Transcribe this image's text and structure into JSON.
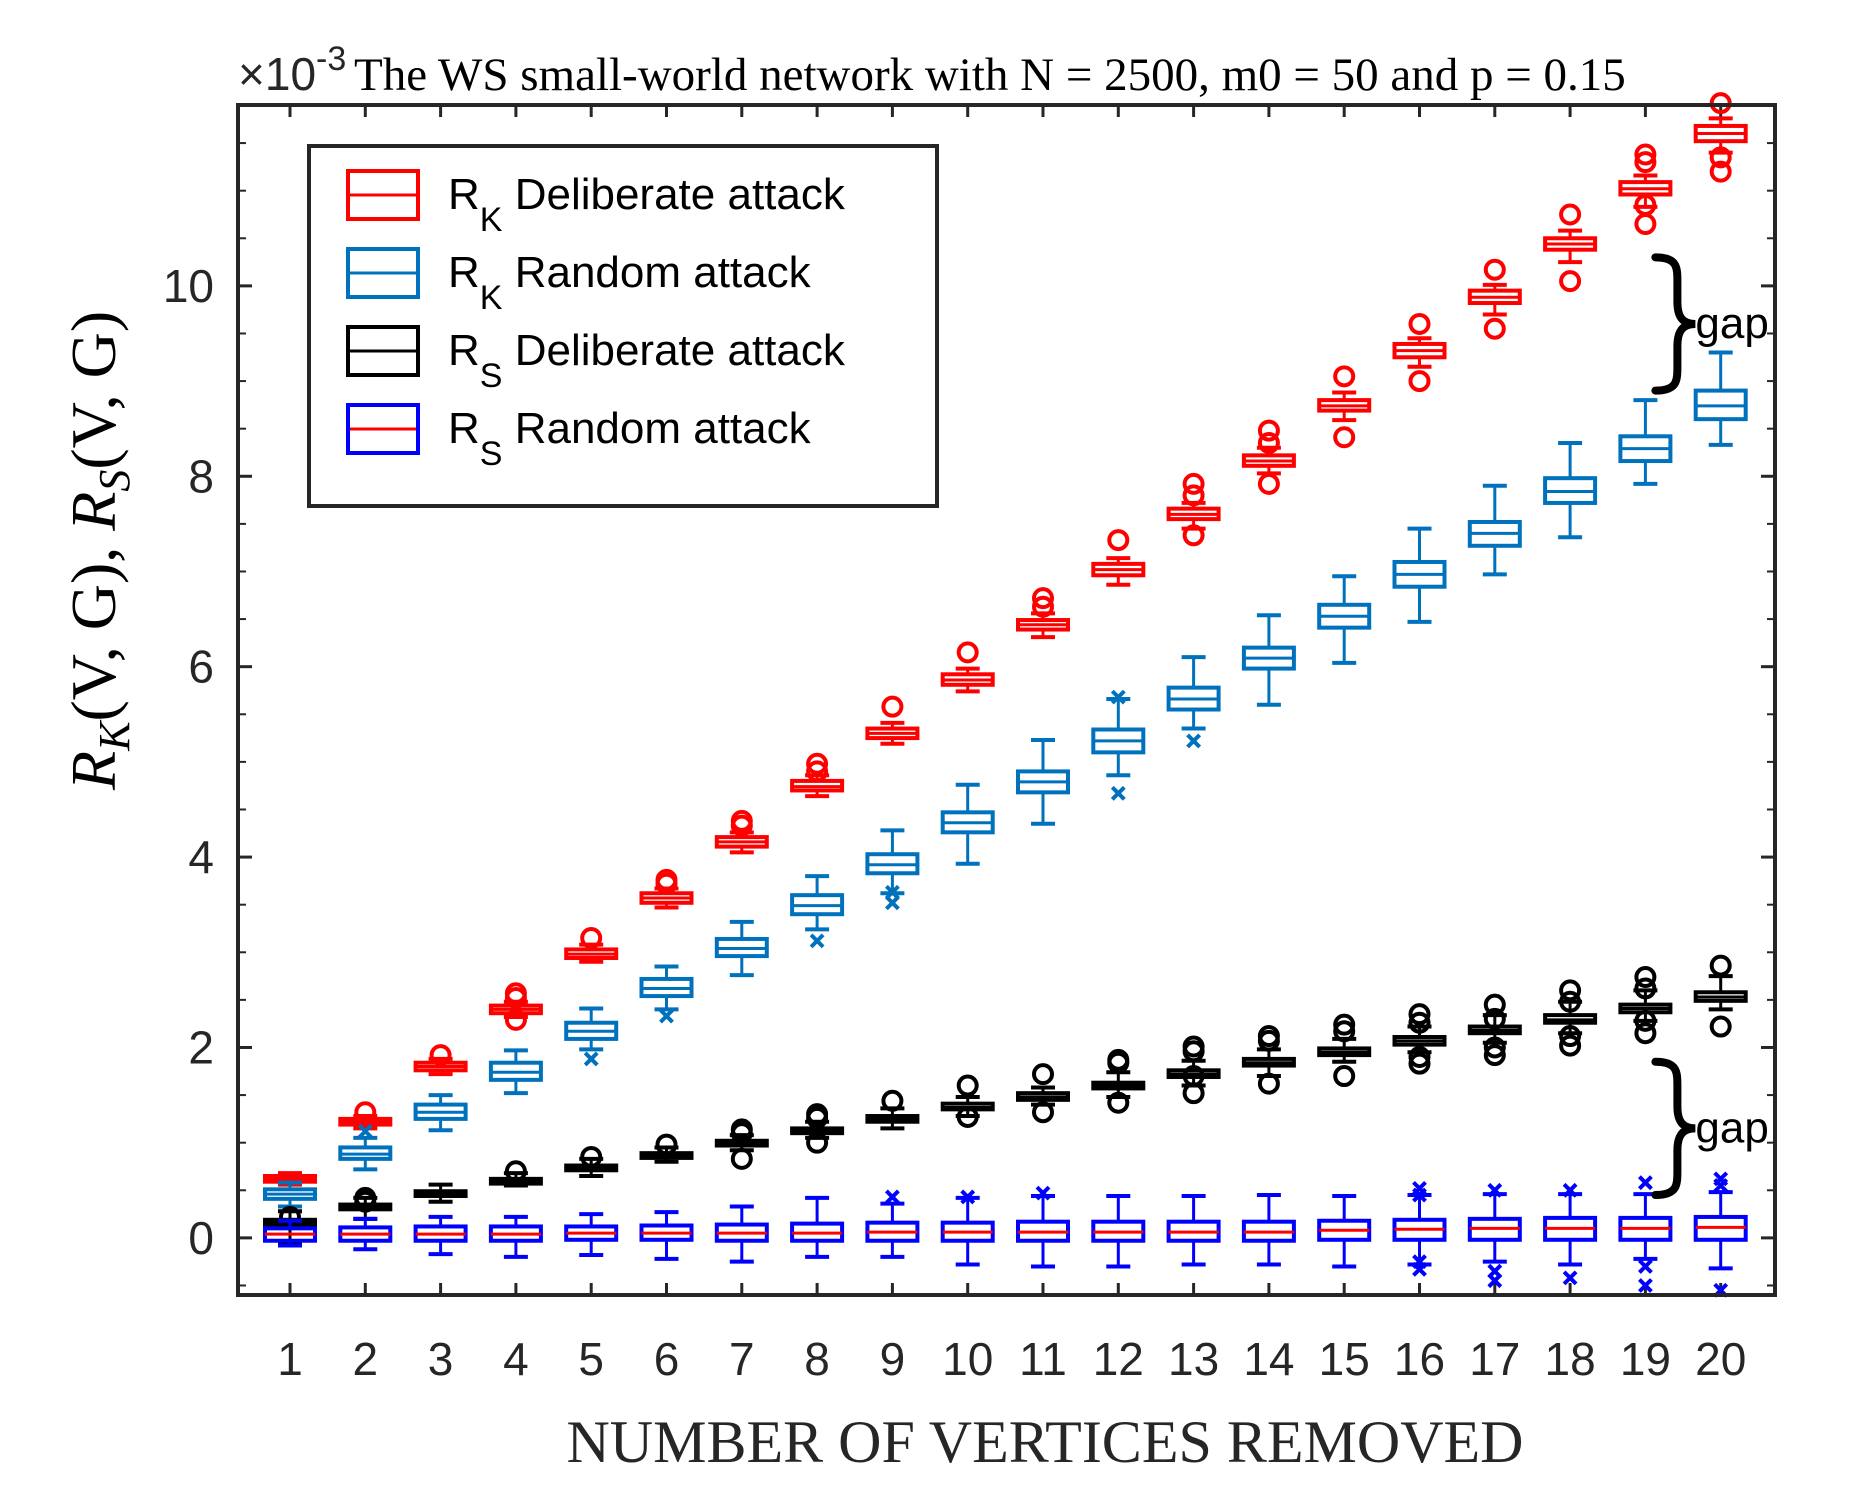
{
  "chart_data": {
    "type": "boxplot",
    "title": "The WS small-world network with N = 2500, m0 = 50 and p = 0.15",
    "xlabel": "NUMBER OF VERTICES REMOVED",
    "ylabel": "R_K(V, G), R_S(V, G)",
    "ylabel_parts": {
      "r1": "R",
      "k": "K",
      "mid": "(V, G), ",
      "r2": "R",
      "s": "S",
      "end": "(V, G)"
    },
    "y_exponent": {
      "prefix": "×10",
      "power": "-3"
    },
    "y_scale": 0.001,
    "ylim": [
      -0.6,
      11.9
    ],
    "y_ticks": [
      0,
      2,
      4,
      6,
      8,
      10
    ],
    "y_tick_labels": [
      "0",
      "2",
      "4",
      "6",
      "8",
      "10"
    ],
    "categories": [
      "1",
      "2",
      "3",
      "4",
      "5",
      "6",
      "7",
      "8",
      "9",
      "10",
      "11",
      "12",
      "13",
      "14",
      "15",
      "16",
      "17",
      "18",
      "19",
      "20"
    ],
    "annotations": [
      {
        "text": "gap",
        "y_top": 10.3,
        "y_bottom": 8.9,
        "x_after": 19
      },
      {
        "text": "gap",
        "y_top": 1.85,
        "y_bottom": 0.45,
        "x_after": 19
      }
    ],
    "legend": {
      "position": "top-left",
      "entries": [
        {
          "sym": "R",
          "sub": "K",
          "label": "Deliberate attack",
          "box_color": "#ff0000",
          "median_color": "#ff0000"
        },
        {
          "sym": "R",
          "sub": "K",
          "label": "Random attack",
          "box_color": "#0072bd",
          "median_color": "#0072bd"
        },
        {
          "sym": "R",
          "sub": "S",
          "label": "Deliberate attack",
          "box_color": "#000000",
          "median_color": "#000000"
        },
        {
          "sym": "R",
          "sub": "S",
          "label": "Random attack",
          "box_color": "#0000ff",
          "median_color": "#ff0000"
        }
      ]
    },
    "series": [
      {
        "name": "R_K Deliberate attack",
        "box_color": "#ff0000",
        "median_color": "#ff0000",
        "outlier_marker": "circle",
        "median": [
          0.62,
          1.22,
          1.8,
          2.4,
          2.98,
          3.57,
          4.16,
          4.74,
          5.3,
          5.86,
          6.44,
          7.02,
          7.6,
          8.16,
          8.74,
          9.32,
          9.88,
          10.44,
          11.02,
          11.6
        ],
        "q1": [
          0.59,
          1.19,
          1.76,
          2.36,
          2.94,
          3.52,
          4.11,
          4.7,
          5.25,
          5.81,
          6.39,
          6.96,
          7.55,
          8.11,
          8.69,
          9.25,
          9.82,
          10.38,
          10.96,
          11.52
        ],
        "q3": [
          0.65,
          1.25,
          1.84,
          2.44,
          3.03,
          3.62,
          4.21,
          4.8,
          5.35,
          5.92,
          6.49,
          7.08,
          7.66,
          8.22,
          8.8,
          9.39,
          9.95,
          10.5,
          11.09,
          11.68
        ],
        "wlo": [
          0.56,
          1.15,
          1.72,
          2.32,
          2.9,
          3.47,
          4.05,
          4.64,
          5.19,
          5.74,
          6.31,
          6.86,
          7.45,
          8.03,
          8.59,
          9.15,
          9.7,
          10.25,
          10.83,
          11.4
        ],
        "whi": [
          0.68,
          1.28,
          1.88,
          2.48,
          3.08,
          3.67,
          4.26,
          4.86,
          5.41,
          5.98,
          6.56,
          7.14,
          7.72,
          8.3,
          8.88,
          9.45,
          10.01,
          10.58,
          11.16,
          11.76
        ],
        "outliers": [
          [],
          [
            1.32
          ],
          [
            1.92
          ],
          [
            2.29,
            2.52,
            2.57
          ],
          [
            3.15
          ],
          [
            3.72,
            3.76
          ],
          [
            4.33,
            4.38
          ],
          [
            4.9,
            4.98
          ],
          [
            5.58
          ],
          [
            6.15
          ],
          [
            6.63,
            6.72
          ],
          [
            7.33
          ],
          [
            7.38,
            7.8,
            7.92
          ],
          [
            7.92,
            8.35,
            8.48
          ],
          [
            8.41,
            9.05
          ],
          [
            9.0,
            9.6
          ],
          [
            9.55,
            10.17
          ],
          [
            10.05,
            10.75
          ],
          [
            10.65,
            10.85,
            11.3,
            11.38
          ],
          [
            11.2,
            11.35,
            11.92
          ]
        ]
      },
      {
        "name": "R_K Random attack",
        "box_color": "#0072bd",
        "median_color": "#0072bd",
        "outlier_marker": "x",
        "median": [
          0.46,
          0.88,
          1.32,
          1.74,
          2.17,
          2.62,
          3.04,
          3.49,
          3.92,
          4.36,
          4.79,
          5.22,
          5.66,
          6.09,
          6.53,
          6.97,
          7.4,
          7.84,
          8.29,
          8.74
        ],
        "q1": [
          0.41,
          0.83,
          1.25,
          1.66,
          2.09,
          2.54,
          2.96,
          3.4,
          3.83,
          4.26,
          4.68,
          5.1,
          5.55,
          5.98,
          6.41,
          6.84,
          7.27,
          7.72,
          8.16,
          8.6
        ],
        "q3": [
          0.51,
          0.95,
          1.4,
          1.84,
          2.26,
          2.72,
          3.14,
          3.6,
          4.03,
          4.47,
          4.9,
          5.34,
          5.78,
          6.2,
          6.65,
          7.1,
          7.52,
          7.98,
          8.42,
          8.9
        ],
        "wlo": [
          0.33,
          0.72,
          1.13,
          1.52,
          1.98,
          2.4,
          2.76,
          3.24,
          3.62,
          3.93,
          4.35,
          4.86,
          5.35,
          5.6,
          6.04,
          6.47,
          6.97,
          7.36,
          7.92,
          8.33
        ],
        "whi": [
          0.58,
          1.05,
          1.5,
          1.97,
          2.41,
          2.85,
          3.32,
          3.8,
          4.28,
          4.76,
          5.23,
          5.66,
          6.1,
          6.54,
          6.95,
          7.45,
          7.9,
          8.35,
          8.8,
          9.3
        ],
        "outliers": [
          [],
          [
            1.12
          ],
          [],
          [],
          [
            1.88
          ],
          [
            2.33
          ],
          [],
          [
            3.12
          ],
          [
            3.52,
            3.63
          ],
          [],
          [],
          [
            4.67,
            5.68
          ],
          [
            5.22
          ],
          [],
          [],
          [],
          [],
          [],
          [],
          []
        ]
      },
      {
        "name": "R_S Deliberate attack",
        "box_color": "#000000",
        "median_color": "#000000",
        "outlier_marker": "circle",
        "median": [
          0.16,
          0.32,
          0.46,
          0.59,
          0.73,
          0.86,
          0.99,
          1.12,
          1.25,
          1.37,
          1.48,
          1.6,
          1.72,
          1.84,
          1.95,
          2.07,
          2.18,
          2.29,
          2.41,
          2.53
        ],
        "q1": [
          0.13,
          0.3,
          0.44,
          0.57,
          0.71,
          0.84,
          0.97,
          1.1,
          1.22,
          1.35,
          1.45,
          1.57,
          1.69,
          1.81,
          1.92,
          2.03,
          2.15,
          2.26,
          2.37,
          2.49
        ],
        "q3": [
          0.19,
          0.35,
          0.49,
          0.62,
          0.76,
          0.89,
          1.02,
          1.15,
          1.28,
          1.41,
          1.52,
          1.63,
          1.76,
          1.88,
          1.99,
          2.11,
          2.22,
          2.34,
          2.45,
          2.58
        ],
        "wlo": [
          -0.05,
          0.2,
          0.38,
          0.55,
          0.65,
          0.8,
          0.92,
          1.05,
          1.15,
          1.28,
          1.4,
          1.48,
          1.6,
          1.7,
          1.85,
          1.95,
          2.05,
          2.15,
          2.28,
          2.4
        ],
        "whi": [
          0.28,
          0.42,
          0.56,
          0.68,
          0.83,
          0.95,
          1.08,
          1.22,
          1.36,
          1.48,
          1.58,
          1.74,
          1.86,
          1.98,
          2.09,
          2.22,
          2.34,
          2.48,
          2.6,
          2.75
        ],
        "outliers": [
          [
            0.22
          ],
          [
            0.38,
            0.42
          ],
          [],
          [
            0.7
          ],
          [
            0.85
          ],
          [
            0.98
          ],
          [
            0.83,
            1.1,
            1.14
          ],
          [
            1.0,
            1.26,
            1.3
          ],
          [
            1.44
          ],
          [
            1.27,
            1.6
          ],
          [
            1.32,
            1.72
          ],
          [
            1.42,
            1.84,
            1.87
          ],
          [
            1.52,
            1.7,
            1.96,
            2.01
          ],
          [
            1.62,
            2.07,
            2.12
          ],
          [
            1.7,
            2.17,
            2.24
          ],
          [
            1.83,
            1.9,
            2.26,
            2.35
          ],
          [
            1.92,
            2.0,
            2.3,
            2.45
          ],
          [
            2.02,
            2.12,
            2.48,
            2.6
          ],
          [
            2.15,
            2.28,
            2.62,
            2.74
          ],
          [
            2.22,
            2.86
          ]
        ]
      },
      {
        "name": "R_S Random attack",
        "box_color": "#0000ff",
        "median_color": "#ff0000",
        "outlier_marker": "x",
        "median": [
          0.04,
          0.04,
          0.04,
          0.04,
          0.05,
          0.05,
          0.05,
          0.05,
          0.06,
          0.06,
          0.06,
          0.06,
          0.06,
          0.06,
          0.08,
          0.09,
          0.1,
          0.1,
          0.1,
          0.11
        ],
        "q1": [
          -0.03,
          -0.03,
          -0.03,
          -0.03,
          -0.02,
          -0.02,
          -0.03,
          -0.03,
          -0.03,
          -0.03,
          -0.03,
          -0.03,
          -0.03,
          -0.03,
          -0.02,
          -0.02,
          -0.02,
          -0.02,
          -0.02,
          -0.02
        ],
        "q3": [
          0.1,
          0.11,
          0.12,
          0.12,
          0.12,
          0.13,
          0.14,
          0.15,
          0.16,
          0.16,
          0.17,
          0.17,
          0.17,
          0.17,
          0.18,
          0.19,
          0.2,
          0.21,
          0.21,
          0.22
        ],
        "wlo": [
          -0.08,
          -0.12,
          -0.17,
          -0.2,
          -0.18,
          -0.22,
          -0.25,
          -0.2,
          -0.2,
          -0.28,
          -0.3,
          -0.3,
          -0.28,
          -0.28,
          -0.3,
          -0.28,
          -0.25,
          -0.28,
          -0.22,
          -0.32
        ],
        "whi": [
          0.18,
          0.2,
          0.22,
          0.22,
          0.25,
          0.27,
          0.33,
          0.42,
          0.36,
          0.42,
          0.44,
          0.44,
          0.44,
          0.45,
          0.44,
          0.45,
          0.46,
          0.46,
          0.46,
          0.48
        ],
        "outliers": [
          [],
          [],
          [],
          [],
          [],
          [],
          [],
          [],
          [
            0.43
          ],
          [
            0.43
          ],
          [
            0.47
          ],
          [],
          [],
          [],
          [],
          [
            -0.25,
            -0.33,
            0.45,
            0.52
          ],
          [
            -0.35,
            -0.45,
            0.5
          ],
          [
            -0.42,
            0.5
          ],
          [
            -0.3,
            -0.5,
            0.58
          ],
          [
            -0.55,
            0.55,
            0.62
          ]
        ]
      }
    ]
  }
}
